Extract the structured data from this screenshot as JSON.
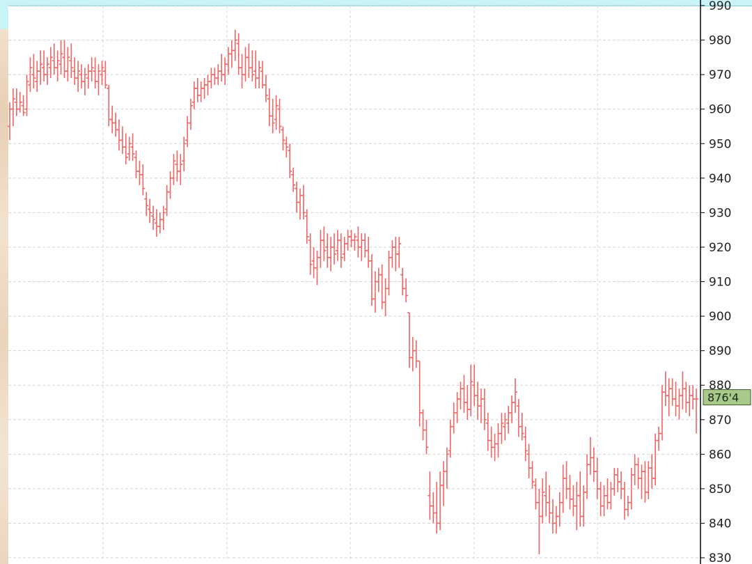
{
  "colors": {
    "bar": "#f06464",
    "grid": "#d4d4d4",
    "axis": "#000000",
    "badge": "#a9c98a"
  },
  "last_price_label": "876'4",
  "chart_data": {
    "type": "ohlc",
    "title": "",
    "xlabel": "",
    "ylabel": "",
    "ylim": [
      829,
      990
    ],
    "yticks": [
      "830",
      "840",
      "850",
      "860",
      "870",
      "880",
      "890",
      "900",
      "910",
      "920",
      "930",
      "940",
      "950",
      "960",
      "970",
      "980",
      "990"
    ],
    "grid": true,
    "last_value": 876.5,
    "bars": [
      {
        "o": 955,
        "h": 962,
        "l": 951,
        "c": 960
      },
      {
        "o": 960,
        "h": 966,
        "l": 955,
        "c": 963
      },
      {
        "o": 962,
        "h": 966,
        "l": 958,
        "c": 960
      },
      {
        "o": 960,
        "h": 965,
        "l": 959,
        "c": 962
      },
      {
        "o": 961,
        "h": 964,
        "l": 958,
        "c": 959
      },
      {
        "o": 960,
        "h": 970,
        "l": 958,
        "c": 968
      },
      {
        "o": 967,
        "h": 975,
        "l": 965,
        "c": 972
      },
      {
        "o": 970,
        "h": 976,
        "l": 966,
        "c": 969
      },
      {
        "o": 968,
        "h": 974,
        "l": 965,
        "c": 971
      },
      {
        "o": 971,
        "h": 977,
        "l": 967,
        "c": 973
      },
      {
        "o": 972,
        "h": 977,
        "l": 968,
        "c": 970
      },
      {
        "o": 970,
        "h": 975,
        "l": 967,
        "c": 973
      },
      {
        "o": 972,
        "h": 978,
        "l": 969,
        "c": 975
      },
      {
        "o": 974,
        "h": 979,
        "l": 970,
        "c": 972
      },
      {
        "o": 972,
        "h": 977,
        "l": 968,
        "c": 974
      },
      {
        "o": 973,
        "h": 980,
        "l": 970,
        "c": 976
      },
      {
        "o": 975,
        "h": 980,
        "l": 969,
        "c": 971
      },
      {
        "o": 971,
        "h": 978,
        "l": 968,
        "c": 975
      },
      {
        "o": 974,
        "h": 979,
        "l": 969,
        "c": 972
      },
      {
        "o": 971,
        "h": 975,
        "l": 967,
        "c": 969
      },
      {
        "o": 969,
        "h": 974,
        "l": 965,
        "c": 971
      },
      {
        "o": 970,
        "h": 973,
        "l": 966,
        "c": 968
      },
      {
        "o": 968,
        "h": 972,
        "l": 964,
        "c": 970
      },
      {
        "o": 969,
        "h": 973,
        "l": 966,
        "c": 971
      },
      {
        "o": 971,
        "h": 975,
        "l": 968,
        "c": 972
      },
      {
        "o": 971,
        "h": 975,
        "l": 966,
        "c": 968
      },
      {
        "o": 968,
        "h": 973,
        "l": 964,
        "c": 971
      },
      {
        "o": 970,
        "h": 974,
        "l": 967,
        "c": 972
      },
      {
        "o": 971,
        "h": 974,
        "l": 966,
        "c": 967
      },
      {
        "o": 966,
        "h": 967,
        "l": 955,
        "c": 957
      },
      {
        "o": 957,
        "h": 961,
        "l": 953,
        "c": 956
      },
      {
        "o": 956,
        "h": 959,
        "l": 952,
        "c": 954
      },
      {
        "o": 954,
        "h": 957,
        "l": 948,
        "c": 951
      },
      {
        "o": 951,
        "h": 955,
        "l": 947,
        "c": 949
      },
      {
        "o": 949,
        "h": 953,
        "l": 944,
        "c": 946
      },
      {
        "o": 947,
        "h": 952,
        "l": 945,
        "c": 950
      },
      {
        "o": 949,
        "h": 953,
        "l": 945,
        "c": 947
      },
      {
        "o": 946,
        "h": 948,
        "l": 940,
        "c": 942
      },
      {
        "o": 942,
        "h": 945,
        "l": 938,
        "c": 941
      },
      {
        "o": 941,
        "h": 944,
        "l": 935,
        "c": 937
      },
      {
        "o": 934,
        "h": 936,
        "l": 929,
        "c": 932
      },
      {
        "o": 931,
        "h": 934,
        "l": 927,
        "c": 930
      },
      {
        "o": 929,
        "h": 932,
        "l": 925,
        "c": 928
      },
      {
        "o": 927,
        "h": 931,
        "l": 923,
        "c": 926
      },
      {
        "o": 926,
        "h": 930,
        "l": 924,
        "c": 928
      },
      {
        "o": 928,
        "h": 932,
        "l": 925,
        "c": 930
      },
      {
        "o": 931,
        "h": 938,
        "l": 929,
        "c": 936
      },
      {
        "o": 936,
        "h": 942,
        "l": 934,
        "c": 940
      },
      {
        "o": 940,
        "h": 947,
        "l": 938,
        "c": 945
      },
      {
        "o": 944,
        "h": 948,
        "l": 939,
        "c": 942
      },
      {
        "o": 942,
        "h": 947,
        "l": 938,
        "c": 944
      },
      {
        "o": 945,
        "h": 952,
        "l": 942,
        "c": 950
      },
      {
        "o": 951,
        "h": 958,
        "l": 949,
        "c": 956
      },
      {
        "o": 956,
        "h": 963,
        "l": 954,
        "c": 961
      },
      {
        "o": 962,
        "h": 968,
        "l": 960,
        "c": 966
      },
      {
        "o": 966,
        "h": 969,
        "l": 962,
        "c": 964
      },
      {
        "o": 964,
        "h": 968,
        "l": 962,
        "c": 966
      },
      {
        "o": 966,
        "h": 969,
        "l": 963,
        "c": 967
      },
      {
        "o": 967,
        "h": 970,
        "l": 964,
        "c": 968
      },
      {
        "o": 968,
        "h": 972,
        "l": 966,
        "c": 970
      },
      {
        "o": 970,
        "h": 972,
        "l": 967,
        "c": 969
      },
      {
        "o": 969,
        "h": 973,
        "l": 967,
        "c": 971
      },
      {
        "o": 971,
        "h": 976,
        "l": 968,
        "c": 970
      },
      {
        "o": 970,
        "h": 975,
        "l": 967,
        "c": 973
      },
      {
        "o": 973,
        "h": 978,
        "l": 970,
        "c": 976
      },
      {
        "o": 976,
        "h": 980,
        "l": 972,
        "c": 977
      },
      {
        "o": 977,
        "h": 983,
        "l": 974,
        "c": 980
      },
      {
        "o": 979,
        "h": 982,
        "l": 970,
        "c": 972
      },
      {
        "o": 972,
        "h": 976,
        "l": 966,
        "c": 970
      },
      {
        "o": 970,
        "h": 978,
        "l": 968,
        "c": 975
      },
      {
        "o": 975,
        "h": 979,
        "l": 969,
        "c": 972
      },
      {
        "o": 972,
        "h": 977,
        "l": 968,
        "c": 970
      },
      {
        "o": 971,
        "h": 977,
        "l": 966,
        "c": 969
      },
      {
        "o": 969,
        "h": 974,
        "l": 966,
        "c": 972
      },
      {
        "o": 971,
        "h": 974,
        "l": 966,
        "c": 967
      },
      {
        "o": 967,
        "h": 970,
        "l": 962,
        "c": 964
      },
      {
        "o": 963,
        "h": 966,
        "l": 955,
        "c": 958
      },
      {
        "o": 958,
        "h": 963,
        "l": 953,
        "c": 956
      },
      {
        "o": 957,
        "h": 964,
        "l": 954,
        "c": 961
      },
      {
        "o": 960,
        "h": 963,
        "l": 953,
        "c": 955
      },
      {
        "o": 954,
        "h": 955,
        "l": 948,
        "c": 951
      },
      {
        "o": 950,
        "h": 952,
        "l": 946,
        "c": 949
      },
      {
        "o": 948,
        "h": 950,
        "l": 940,
        "c": 942
      },
      {
        "o": 941,
        "h": 943,
        "l": 936,
        "c": 938
      },
      {
        "o": 937,
        "h": 939,
        "l": 930,
        "c": 933
      },
      {
        "o": 933,
        "h": 937,
        "l": 928,
        "c": 935
      },
      {
        "o": 935,
        "h": 938,
        "l": 928,
        "c": 930
      },
      {
        "o": 929,
        "h": 931,
        "l": 921,
        "c": 923
      },
      {
        "o": 922,
        "h": 924,
        "l": 912,
        "c": 915
      },
      {
        "o": 916,
        "h": 920,
        "l": 911,
        "c": 914
      },
      {
        "o": 914,
        "h": 919,
        "l": 909,
        "c": 917
      },
      {
        "o": 917,
        "h": 925,
        "l": 914,
        "c": 922
      },
      {
        "o": 922,
        "h": 926,
        "l": 916,
        "c": 919
      },
      {
        "o": 920,
        "h": 924,
        "l": 914,
        "c": 917
      },
      {
        "o": 917,
        "h": 923,
        "l": 913,
        "c": 920
      },
      {
        "o": 920,
        "h": 924,
        "l": 915,
        "c": 918
      },
      {
        "o": 919,
        "h": 925,
        "l": 916,
        "c": 922
      },
      {
        "o": 922,
        "h": 924,
        "l": 914,
        "c": 917
      },
      {
        "o": 918,
        "h": 923,
        "l": 916,
        "c": 921
      },
      {
        "o": 921,
        "h": 925,
        "l": 919,
        "c": 923
      },
      {
        "o": 923,
        "h": 925,
        "l": 920,
        "c": 922
      },
      {
        "o": 922,
        "h": 924,
        "l": 919,
        "c": 923
      },
      {
        "o": 922,
        "h": 926,
        "l": 917,
        "c": 920
      },
      {
        "o": 920,
        "h": 924,
        "l": 916,
        "c": 922
      },
      {
        "o": 922,
        "h": 924,
        "l": 917,
        "c": 919
      },
      {
        "o": 919,
        "h": 923,
        "l": 914,
        "c": 916
      },
      {
        "o": 916,
        "h": 918,
        "l": 903,
        "c": 905
      },
      {
        "o": 905,
        "h": 913,
        "l": 901,
        "c": 910
      },
      {
        "o": 910,
        "h": 914,
        "l": 907,
        "c": 912
      },
      {
        "o": 912,
        "h": 915,
        "l": 902,
        "c": 904
      },
      {
        "o": 904,
        "h": 911,
        "l": 900,
        "c": 908
      },
      {
        "o": 908,
        "h": 919,
        "l": 906,
        "c": 917
      },
      {
        "o": 917,
        "h": 922,
        "l": 914,
        "c": 920
      },
      {
        "o": 920,
        "h": 923,
        "l": 913,
        "c": 918
      },
      {
        "o": 918,
        "h": 923,
        "l": 914,
        "c": 921
      },
      {
        "o": 912,
        "h": 914,
        "l": 906,
        "c": 908
      },
      {
        "o": 908,
        "h": 911,
        "l": 904,
        "c": 906
      },
      {
        "o": 901,
        "h": 901,
        "l": 885,
        "c": 888
      },
      {
        "o": 888,
        "h": 894,
        "l": 884,
        "c": 890
      },
      {
        "o": 890,
        "h": 893,
        "l": 885,
        "c": 887
      },
      {
        "o": 887,
        "h": 887,
        "l": 868,
        "c": 872
      },
      {
        "o": 872,
        "h": 873,
        "l": 864,
        "c": 867
      },
      {
        "o": 867,
        "h": 870,
        "l": 860,
        "c": 862
      },
      {
        "o": 848,
        "h": 855,
        "l": 841,
        "c": 845
      },
      {
        "o": 845,
        "h": 849,
        "l": 840,
        "c": 843
      },
      {
        "o": 843,
        "h": 852,
        "l": 837,
        "c": 840
      },
      {
        "o": 840,
        "h": 855,
        "l": 838,
        "c": 851
      },
      {
        "o": 851,
        "h": 858,
        "l": 845,
        "c": 855
      },
      {
        "o": 855,
        "h": 862,
        "l": 850,
        "c": 860
      },
      {
        "o": 861,
        "h": 870,
        "l": 859,
        "c": 868
      },
      {
        "o": 868,
        "h": 875,
        "l": 866,
        "c": 872
      },
      {
        "o": 872,
        "h": 878,
        "l": 869,
        "c": 876
      },
      {
        "o": 876,
        "h": 881,
        "l": 873,
        "c": 879
      },
      {
        "o": 879,
        "h": 883,
        "l": 872,
        "c": 875
      },
      {
        "o": 875,
        "h": 880,
        "l": 870,
        "c": 873
      },
      {
        "o": 873,
        "h": 886,
        "l": 871,
        "c": 881
      },
      {
        "o": 880,
        "h": 886,
        "l": 874,
        "c": 877
      },
      {
        "o": 877,
        "h": 881,
        "l": 870,
        "c": 874
      },
      {
        "o": 874,
        "h": 879,
        "l": 869,
        "c": 876
      },
      {
        "o": 876,
        "h": 879,
        "l": 867,
        "c": 870
      },
      {
        "o": 869,
        "h": 872,
        "l": 861,
        "c": 864
      },
      {
        "o": 864,
        "h": 868,
        "l": 859,
        "c": 862
      },
      {
        "o": 862,
        "h": 866,
        "l": 858,
        "c": 863
      },
      {
        "o": 863,
        "h": 869,
        "l": 859,
        "c": 866
      },
      {
        "o": 866,
        "h": 872,
        "l": 863,
        "c": 869
      },
      {
        "o": 868,
        "h": 872,
        "l": 864,
        "c": 870
      },
      {
        "o": 869,
        "h": 874,
        "l": 866,
        "c": 872
      },
      {
        "o": 872,
        "h": 877,
        "l": 869,
        "c": 875
      },
      {
        "o": 875,
        "h": 882,
        "l": 872,
        "c": 878
      },
      {
        "o": 874,
        "h": 876,
        "l": 865,
        "c": 868
      },
      {
        "o": 868,
        "h": 872,
        "l": 864,
        "c": 866
      },
      {
        "o": 865,
        "h": 868,
        "l": 858,
        "c": 861
      },
      {
        "o": 860,
        "h": 863,
        "l": 853,
        "c": 856
      },
      {
        "o": 856,
        "h": 858,
        "l": 850,
        "c": 852
      },
      {
        "o": 851,
        "h": 853,
        "l": 844,
        "c": 846
      },
      {
        "o": 846,
        "h": 850,
        "l": 831,
        "c": 842
      },
      {
        "o": 842,
        "h": 853,
        "l": 840,
        "c": 849
      },
      {
        "o": 848,
        "h": 855,
        "l": 842,
        "c": 846
      },
      {
        "o": 846,
        "h": 851,
        "l": 840,
        "c": 843
      },
      {
        "o": 843,
        "h": 847,
        "l": 837,
        "c": 840
      },
      {
        "o": 840,
        "h": 845,
        "l": 837,
        "c": 842
      },
      {
        "o": 842,
        "h": 849,
        "l": 839,
        "c": 846
      },
      {
        "o": 846,
        "h": 857,
        "l": 843,
        "c": 853
      },
      {
        "o": 853,
        "h": 858,
        "l": 847,
        "c": 850
      },
      {
        "o": 850,
        "h": 854,
        "l": 844,
        "c": 847
      },
      {
        "o": 847,
        "h": 851,
        "l": 842,
        "c": 845
      },
      {
        "o": 845,
        "h": 852,
        "l": 838,
        "c": 848
      },
      {
        "o": 848,
        "h": 855,
        "l": 839,
        "c": 842
      },
      {
        "o": 842,
        "h": 851,
        "l": 839,
        "c": 849
      },
      {
        "o": 849,
        "h": 860,
        "l": 847,
        "c": 857
      },
      {
        "o": 857,
        "h": 865,
        "l": 854,
        "c": 859
      },
      {
        "o": 859,
        "h": 862,
        "l": 852,
        "c": 855
      },
      {
        "o": 855,
        "h": 859,
        "l": 847,
        "c": 850
      },
      {
        "o": 850,
        "h": 852,
        "l": 842,
        "c": 845
      },
      {
        "o": 845,
        "h": 851,
        "l": 842,
        "c": 848
      },
      {
        "o": 848,
        "h": 853,
        "l": 844,
        "c": 846
      },
      {
        "o": 846,
        "h": 852,
        "l": 844,
        "c": 850
      },
      {
        "o": 850,
        "h": 856,
        "l": 848,
        "c": 854
      },
      {
        "o": 854,
        "h": 856,
        "l": 849,
        "c": 852
      },
      {
        "o": 852,
        "h": 855,
        "l": 847,
        "c": 850
      },
      {
        "o": 850,
        "h": 852,
        "l": 841,
        "c": 844
      },
      {
        "o": 844,
        "h": 848,
        "l": 842,
        "c": 846
      },
      {
        "o": 846,
        "h": 856,
        "l": 844,
        "c": 854
      },
      {
        "o": 854,
        "h": 860,
        "l": 851,
        "c": 857
      },
      {
        "o": 857,
        "h": 859,
        "l": 850,
        "c": 853
      },
      {
        "o": 853,
        "h": 857,
        "l": 847,
        "c": 855
      },
      {
        "o": 855,
        "h": 858,
        "l": 846,
        "c": 849
      },
      {
        "o": 849,
        "h": 858,
        "l": 847,
        "c": 856
      },
      {
        "o": 856,
        "h": 860,
        "l": 850,
        "c": 853
      },
      {
        "o": 853,
        "h": 866,
        "l": 851,
        "c": 864
      },
      {
        "o": 864,
        "h": 868,
        "l": 861,
        "c": 866
      },
      {
        "o": 866,
        "h": 880,
        "l": 864,
        "c": 878
      },
      {
        "o": 878,
        "h": 884,
        "l": 874,
        "c": 877
      },
      {
        "o": 877,
        "h": 882,
        "l": 871,
        "c": 879
      },
      {
        "o": 879,
        "h": 882,
        "l": 874,
        "c": 876
      },
      {
        "o": 876,
        "h": 881,
        "l": 871,
        "c": 874
      },
      {
        "o": 874,
        "h": 879,
        "l": 870,
        "c": 877
      },
      {
        "o": 877,
        "h": 884,
        "l": 873,
        "c": 879
      },
      {
        "o": 879,
        "h": 881,
        "l": 872,
        "c": 875
      },
      {
        "o": 875,
        "h": 880,
        "l": 871,
        "c": 877
      },
      {
        "o": 877,
        "h": 880,
        "l": 873,
        "c": 876
      },
      {
        "o": 876,
        "h": 879,
        "l": 866,
        "c": 876
      }
    ]
  }
}
